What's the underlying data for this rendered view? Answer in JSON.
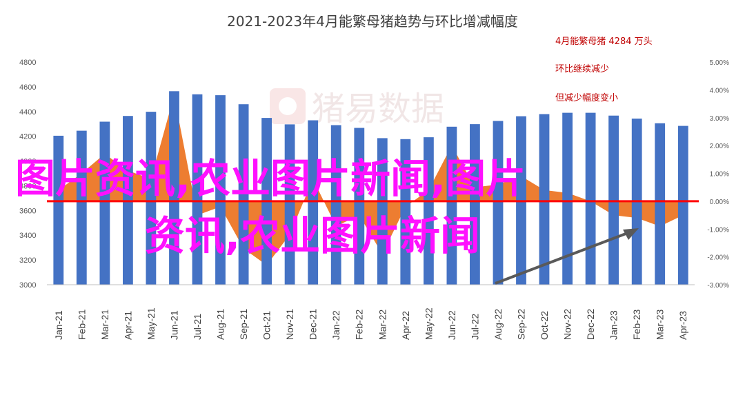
{
  "title": "2021-2023年4月能繁母猪趋势与环比增减幅度",
  "annotations": [
    "4月能繁母猪 4284 万头",
    "环比继续减少",
    "但减少幅度变小"
  ],
  "watermark": "猪易数据",
  "overlay_text": [
    "图片资讯,农业图片新闻,图片",
    "资讯,农业图片新闻"
  ],
  "colors": {
    "bar": "#4472c4",
    "area": "#ed7d31",
    "zero_line": "#ff0000",
    "arrow": "#595959",
    "annotation": "#c00000",
    "overlay": "#ff10ff"
  },
  "chart_data": {
    "type": "bar",
    "categories": [
      "Jan-21",
      "Feb-21",
      "Mar-21",
      "Apr-21",
      "May-21",
      "Jun-21",
      "Jul-21",
      "Aug-21",
      "Sep-21",
      "Oct-21",
      "Nov-21",
      "Dec-21",
      "Jan-22",
      "Feb-22",
      "Mar-22",
      "Apr-22",
      "May-22",
      "Jun-22",
      "Jul-22",
      "Aug-22",
      "Sep-22",
      "Oct-22",
      "Nov-22",
      "Dec-22",
      "Jan-23",
      "Feb-23",
      "Mar-23",
      "Apr-23"
    ],
    "series": [
      {
        "type": "bar",
        "axis": "left",
        "values": [
          4204,
          4245,
          4318,
          4364,
          4398,
          4564,
          4539,
          4532,
          4459,
          4348,
          4296,
          4329,
          4290,
          4268,
          4185,
          4177,
          4192,
          4277,
          4298,
          4324,
          4362,
          4379,
          4390,
          4390,
          4367,
          4343,
          4305,
          4284
        ]
      },
      {
        "type": "area",
        "axis": "right",
        "values": [
          0.4,
          1.0,
          1.7,
          1.1,
          0.8,
          3.8,
          -0.5,
          -0.2,
          -1.7,
          -2.3,
          -1.2,
          0.8,
          -0.9,
          -0.5,
          -1.9,
          -0.2,
          0.4,
          2.0,
          0.5,
          0.6,
          0.9,
          0.4,
          0.3,
          0.0,
          -0.5,
          -0.6,
          -0.9,
          -0.5
        ]
      }
    ],
    "y_left": {
      "min": 3000,
      "max": 4800,
      "ticks": [
        "3000",
        "3200",
        "3400",
        "3600",
        "3800",
        "4000",
        "4200",
        "4400",
        "4600",
        "4800"
      ]
    },
    "y_right": {
      "min": -3,
      "max": 5,
      "ticks": [
        "-3.00%",
        "-2.00%",
        "-1.00%",
        "0.00%",
        "1.00%",
        "2.00%",
        "3.00%",
        "4.00%",
        "5.00%"
      ]
    },
    "grid": false
  }
}
